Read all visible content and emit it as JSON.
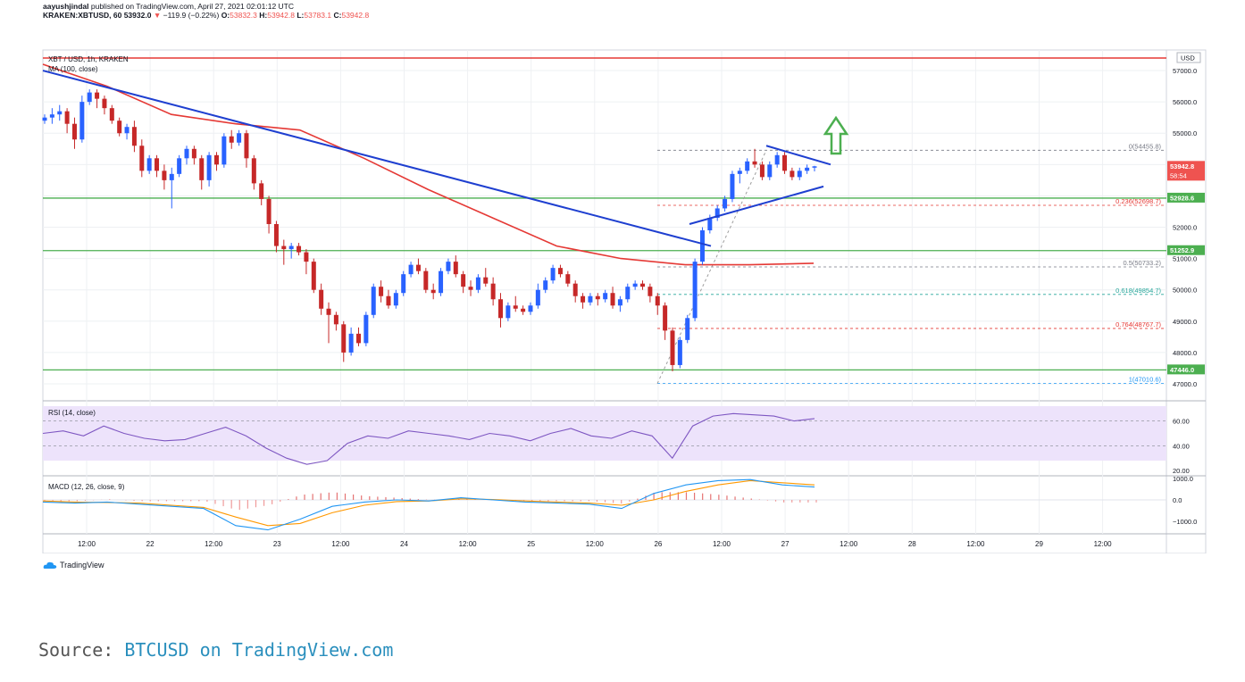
{
  "header": {
    "author": "aayushjindal",
    "published_text": "published on TradingView.com, April 27, 2021 02:01:12 UTC",
    "symbol": "KRAKEN:XBTUSD, 60",
    "last": "53932.0",
    "change": "−119.9 (−0.22%)",
    "o_label": "O:",
    "o": "53832.3",
    "h_label": "H:",
    "h": "53942.8",
    "l_label": "L:",
    "l": "53783.1",
    "c_label": "C:",
    "c": "53942.8"
  },
  "panels": {
    "main_title": "XBT / USD, 1h, KRAKEN",
    "ma_label": "MA (100, close)",
    "rsi_label": "RSI (14, close)",
    "macd_label": "MACD (12, 26, close, 9)"
  },
  "price_axis": {
    "currency": "USD",
    "ticks": [
      "57000.0",
      "56000.0",
      "55000.0",
      "52000.0",
      "51000.0",
      "50000.0",
      "49000.0",
      "48000.0",
      "47000.0"
    ],
    "badges": [
      {
        "text": "53942.8",
        "sub": "58:54",
        "color": "#ef5350"
      },
      {
        "text": "52928.6",
        "color": "#4caf50"
      },
      {
        "text": "51252.9",
        "color": "#4caf50"
      },
      {
        "text": "47446.0",
        "color": "#4caf50"
      }
    ]
  },
  "fib_labels": [
    {
      "text": "0(54455.8)",
      "color": "#787b86"
    },
    {
      "text": "0.236(52698.7)",
      "color": "#e53935"
    },
    {
      "text": "0.5(50733.2)",
      "color": "#787b86"
    },
    {
      "text": "0.618(49854.7)",
      "color": "#26a69a"
    },
    {
      "text": "0.764(48767.7)",
      "color": "#e53935"
    },
    {
      "text": "1(47010.6)",
      "color": "#2196f3"
    }
  ],
  "rsi_axis": [
    "60.00",
    "40.00",
    "20.00"
  ],
  "macd_axis": [
    "1000.0",
    "0.0",
    "−1000.0"
  ],
  "time_axis": [
    "12:00",
    "22",
    "12:00",
    "23",
    "12:00",
    "24",
    "12:00",
    "25",
    "12:00",
    "26",
    "12:00",
    "27",
    "12:00",
    "28",
    "12:00",
    "29",
    "12:00"
  ],
  "brand": "TradingView",
  "footer": {
    "prefix": "Source: ",
    "link": "BTCUSD on TradingView.com"
  },
  "colors": {
    "bull": "#2962ff",
    "bear": "#c62828",
    "ma": "#e53935",
    "trend": "#1e3fd0",
    "support": "#4caf50",
    "resistance": "#e53935",
    "rsi": "#7e57c2",
    "macd": "#2196f3",
    "signal": "#ff9800",
    "arrow": "#4caf50"
  },
  "chart_data": [
    {
      "type": "candlestick",
      "title": "XBT / USD, 1h, KRAKEN",
      "ylim": [
        46700,
        57700
      ],
      "x_range_hours": [
        0,
        180
      ],
      "candles_ohlc_approx": [
        [
          55400,
          55600,
          55300,
          55500
        ],
        [
          55500,
          55800,
          55300,
          55600
        ],
        [
          55600,
          55900,
          55400,
          55700
        ],
        [
          55700,
          55800,
          55000,
          55300
        ],
        [
          55300,
          55500,
          54500,
          54800
        ],
        [
          54800,
          56200,
          54700,
          56000
        ],
        [
          56000,
          56400,
          55900,
          56300
        ],
        [
          56300,
          56400,
          55800,
          56100
        ],
        [
          56100,
          56200,
          55600,
          55800
        ],
        [
          55800,
          55900,
          55300,
          55400
        ],
        [
          55400,
          55500,
          54900,
          55000
        ],
        [
          55000,
          55300,
          54800,
          55200
        ],
        [
          55200,
          55400,
          54400,
          54600
        ],
        [
          54600,
          54800,
          53600,
          53800
        ],
        [
          53800,
          54300,
          53700,
          54200
        ],
        [
          54200,
          54300,
          53600,
          53800
        ],
        [
          53800,
          54000,
          53200,
          53500
        ],
        [
          53500,
          53900,
          52600,
          53700
        ],
        [
          53700,
          54300,
          53600,
          54200
        ],
        [
          54200,
          54600,
          54000,
          54500
        ],
        [
          54500,
          54600,
          54000,
          54200
        ],
        [
          54200,
          54300,
          53200,
          53500
        ],
        [
          53500,
          54400,
          53300,
          54300
        ],
        [
          54300,
          54400,
          53800,
          54000
        ],
        [
          54000,
          55000,
          53900,
          54900
        ],
        [
          54900,
          55100,
          54500,
          54700
        ],
        [
          54700,
          55100,
          54600,
          55000
        ],
        [
          55000,
          55100,
          53900,
          54200
        ],
        [
          54200,
          54300,
          53200,
          53400
        ],
        [
          53400,
          53500,
          52700,
          52900
        ],
        [
          52900,
          53000,
          51800,
          52100
        ],
        [
          52100,
          52200,
          51200,
          51400
        ],
        [
          51400,
          51600,
          50800,
          51300
        ],
        [
          51300,
          51500,
          51000,
          51400
        ],
        [
          51400,
          51500,
          51100,
          51200
        ],
        [
          51200,
          51300,
          50500,
          50900
        ],
        [
          50900,
          51000,
          49900,
          50000
        ],
        [
          50000,
          50200,
          49200,
          49400
        ],
        [
          49400,
          49600,
          48300,
          49200
        ],
        [
          49200,
          49300,
          48700,
          48900
        ],
        [
          48900,
          49000,
          47700,
          48000
        ],
        [
          48000,
          48800,
          47900,
          48600
        ],
        [
          48600,
          48800,
          48200,
          48300
        ],
        [
          48300,
          49300,
          48200,
          49200
        ],
        [
          49200,
          50200,
          49100,
          50100
        ],
        [
          50100,
          50300,
          49600,
          49800
        ],
        [
          49800,
          50000,
          49400,
          49500
        ],
        [
          49500,
          50000,
          49400,
          49900
        ],
        [
          49900,
          50600,
          49800,
          50500
        ],
        [
          50500,
          50900,
          50400,
          50800
        ],
        [
          50800,
          51000,
          50500,
          50600
        ],
        [
          50600,
          50700,
          49900,
          50000
        ],
        [
          50000,
          50200,
          49700,
          49900
        ],
        [
          49900,
          50700,
          49800,
          50600
        ],
        [
          50600,
          51000,
          50500,
          50900
        ],
        [
          50900,
          51100,
          50400,
          50500
        ],
        [
          50500,
          50600,
          49900,
          50100
        ],
        [
          50100,
          50300,
          49800,
          50000
        ],
        [
          50000,
          50500,
          49900,
          50400
        ],
        [
          50400,
          50700,
          50100,
          50200
        ],
        [
          50200,
          50400,
          49500,
          49700
        ],
        [
          49700,
          49900,
          48800,
          49100
        ],
        [
          49100,
          49600,
          49000,
          49500
        ],
        [
          49500,
          49800,
          49300,
          49400
        ],
        [
          49400,
          49500,
          49200,
          49300
        ],
        [
          49300,
          49600,
          49200,
          49500
        ],
        [
          49500,
          50200,
          49400,
          50000
        ],
        [
          50000,
          50400,
          49900,
          50300
        ],
        [
          50300,
          50800,
          50200,
          50700
        ],
        [
          50700,
          50800,
          50400,
          50500
        ],
        [
          50500,
          50600,
          50100,
          50200
        ],
        [
          50200,
          50300,
          49600,
          49800
        ],
        [
          49800,
          49900,
          49400,
          49600
        ],
        [
          49600,
          49900,
          49500,
          49800
        ],
        [
          49800,
          49900,
          49500,
          49700
        ],
        [
          49700,
          50000,
          49600,
          49900
        ],
        [
          49900,
          50100,
          49400,
          49500
        ],
        [
          49500,
          49800,
          49300,
          49700
        ],
        [
          49700,
          50200,
          49600,
          50100
        ],
        [
          50100,
          50300,
          50000,
          50200
        ],
        [
          50200,
          50300,
          50000,
          50100
        ],
        [
          50100,
          50200,
          49600,
          49800
        ],
        [
          49800,
          49900,
          49200,
          49500
        ],
        [
          49500,
          49600,
          48400,
          48700
        ],
        [
          48700,
          48800,
          47400,
          47600
        ],
        [
          47600,
          48500,
          47500,
          48400
        ],
        [
          48400,
          49200,
          48300,
          49100
        ],
        [
          49100,
          51000,
          49000,
          50900
        ],
        [
          50900,
          52000,
          50800,
          51900
        ],
        [
          51900,
          52400,
          51800,
          52300
        ],
        [
          52300,
          52700,
          52200,
          52600
        ],
        [
          52600,
          53000,
          52500,
          52900
        ],
        [
          52900,
          53800,
          52800,
          53700
        ],
        [
          53700,
          53900,
          53400,
          53800
        ],
        [
          53800,
          54200,
          53700,
          54100
        ],
        [
          54100,
          54500,
          53900,
          54000
        ],
        [
          54000,
          54100,
          53500,
          53600
        ],
        [
          53600,
          54100,
          53500,
          54000
        ],
        [
          54000,
          54400,
          53900,
          54300
        ],
        [
          54300,
          54400,
          53700,
          53800
        ],
        [
          53800,
          53900,
          53500,
          53600
        ],
        [
          53600,
          53900,
          53500,
          53800
        ],
        [
          53800,
          54000,
          53700,
          53900
        ],
        [
          53900,
          53960,
          53780,
          53942.8
        ]
      ]
    },
    {
      "type": "line",
      "name": "MA (100, close)",
      "y_approx": [
        57200,
        56500,
        55600,
        55300,
        55100,
        54200,
        53200,
        52300,
        51400,
        51000,
        50800,
        50800,
        50850
      ]
    },
    {
      "type": "line",
      "name": "RSI (14, close)",
      "ylim": [
        20,
        80
      ],
      "y_approx": [
        50,
        52,
        48,
        56,
        50,
        46,
        44,
        45,
        50,
        55,
        48,
        38,
        30,
        25,
        28,
        42,
        48,
        46,
        52,
        50,
        48,
        45,
        50,
        48,
        44,
        50,
        54,
        48,
        46,
        52,
        48,
        30,
        56,
        64,
        66,
        65,
        64,
        60,
        62
      ]
    },
    {
      "type": "line",
      "name": "MACD (12, 26, close, 9)",
      "ylim": [
        -1700,
        1100
      ],
      "series": [
        {
          "name": "macd",
          "y_approx": [
            -100,
            -150,
            -100,
            -200,
            -300,
            -400,
            -1200,
            -1400,
            -900,
            -300,
            -100,
            0,
            -50,
            100,
            0,
            -100,
            -150,
            -200,
            -400,
            300,
            700,
            900,
            950,
            700,
            600
          ]
        },
        {
          "name": "signal",
          "y_approx": [
            -50,
            -100,
            -120,
            -150,
            -250,
            -350,
            -800,
            -1200,
            -1100,
            -600,
            -250,
            -80,
            -50,
            50,
            20,
            -50,
            -100,
            -150,
            -250,
            0,
            400,
            700,
            900,
            800,
            700
          ]
        }
      ]
    }
  ]
}
